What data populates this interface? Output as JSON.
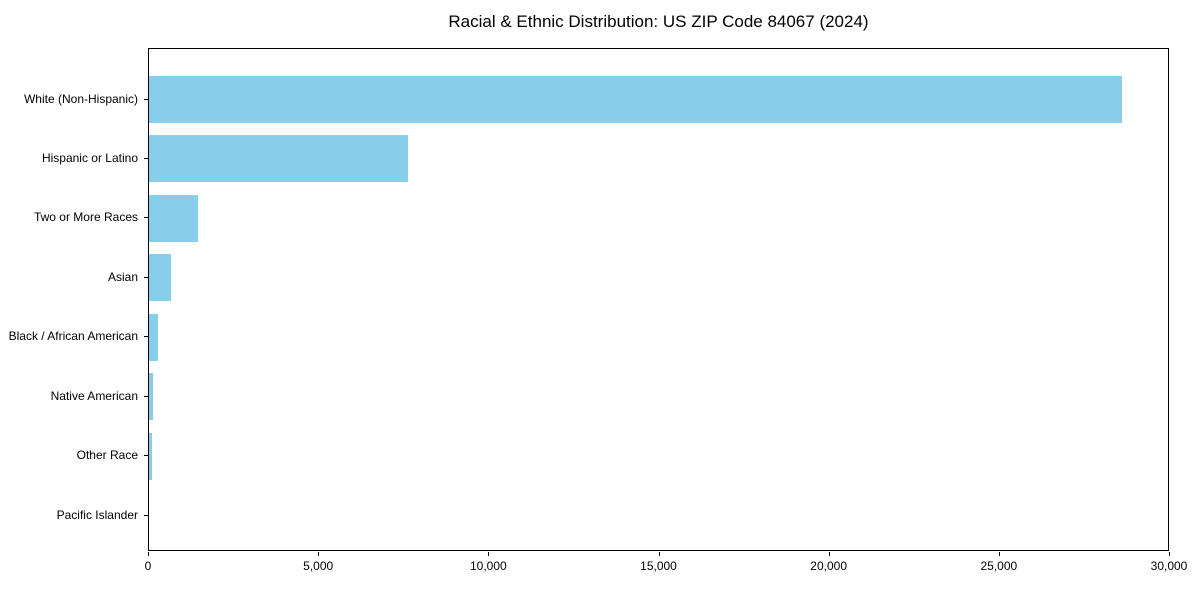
{
  "title": "Racial & Ethnic Distribution: US ZIP Code 84067 (2024)",
  "colors": {
    "bar": "#87CEEB",
    "axis": "#000000",
    "text": "#000000",
    "background": "#FFFFFF"
  },
  "chart_data": {
    "type": "bar",
    "orientation": "horizontal",
    "title": "Racial & Ethnic Distribution: US ZIP Code 84067 (2024)",
    "categories": [
      "White (Non-Hispanic)",
      "Hispanic or Latino",
      "Two or More Races",
      "Asian",
      "Black / African American",
      "Native American",
      "Other Race",
      "Pacific Islander"
    ],
    "values": [
      28600,
      7600,
      1450,
      640,
      250,
      130,
      100,
      0
    ],
    "xlabel": "",
    "ylabel": "",
    "xlim": [
      0,
      30000
    ],
    "xticks": [
      0,
      5000,
      10000,
      15000,
      20000,
      25000,
      30000
    ],
    "xtick_labels": [
      "0",
      "5,000",
      "10,000",
      "15,000",
      "20,000",
      "25,000",
      "30,000"
    ],
    "grid": false,
    "legend": null,
    "bar_color_name": "skyblue"
  }
}
